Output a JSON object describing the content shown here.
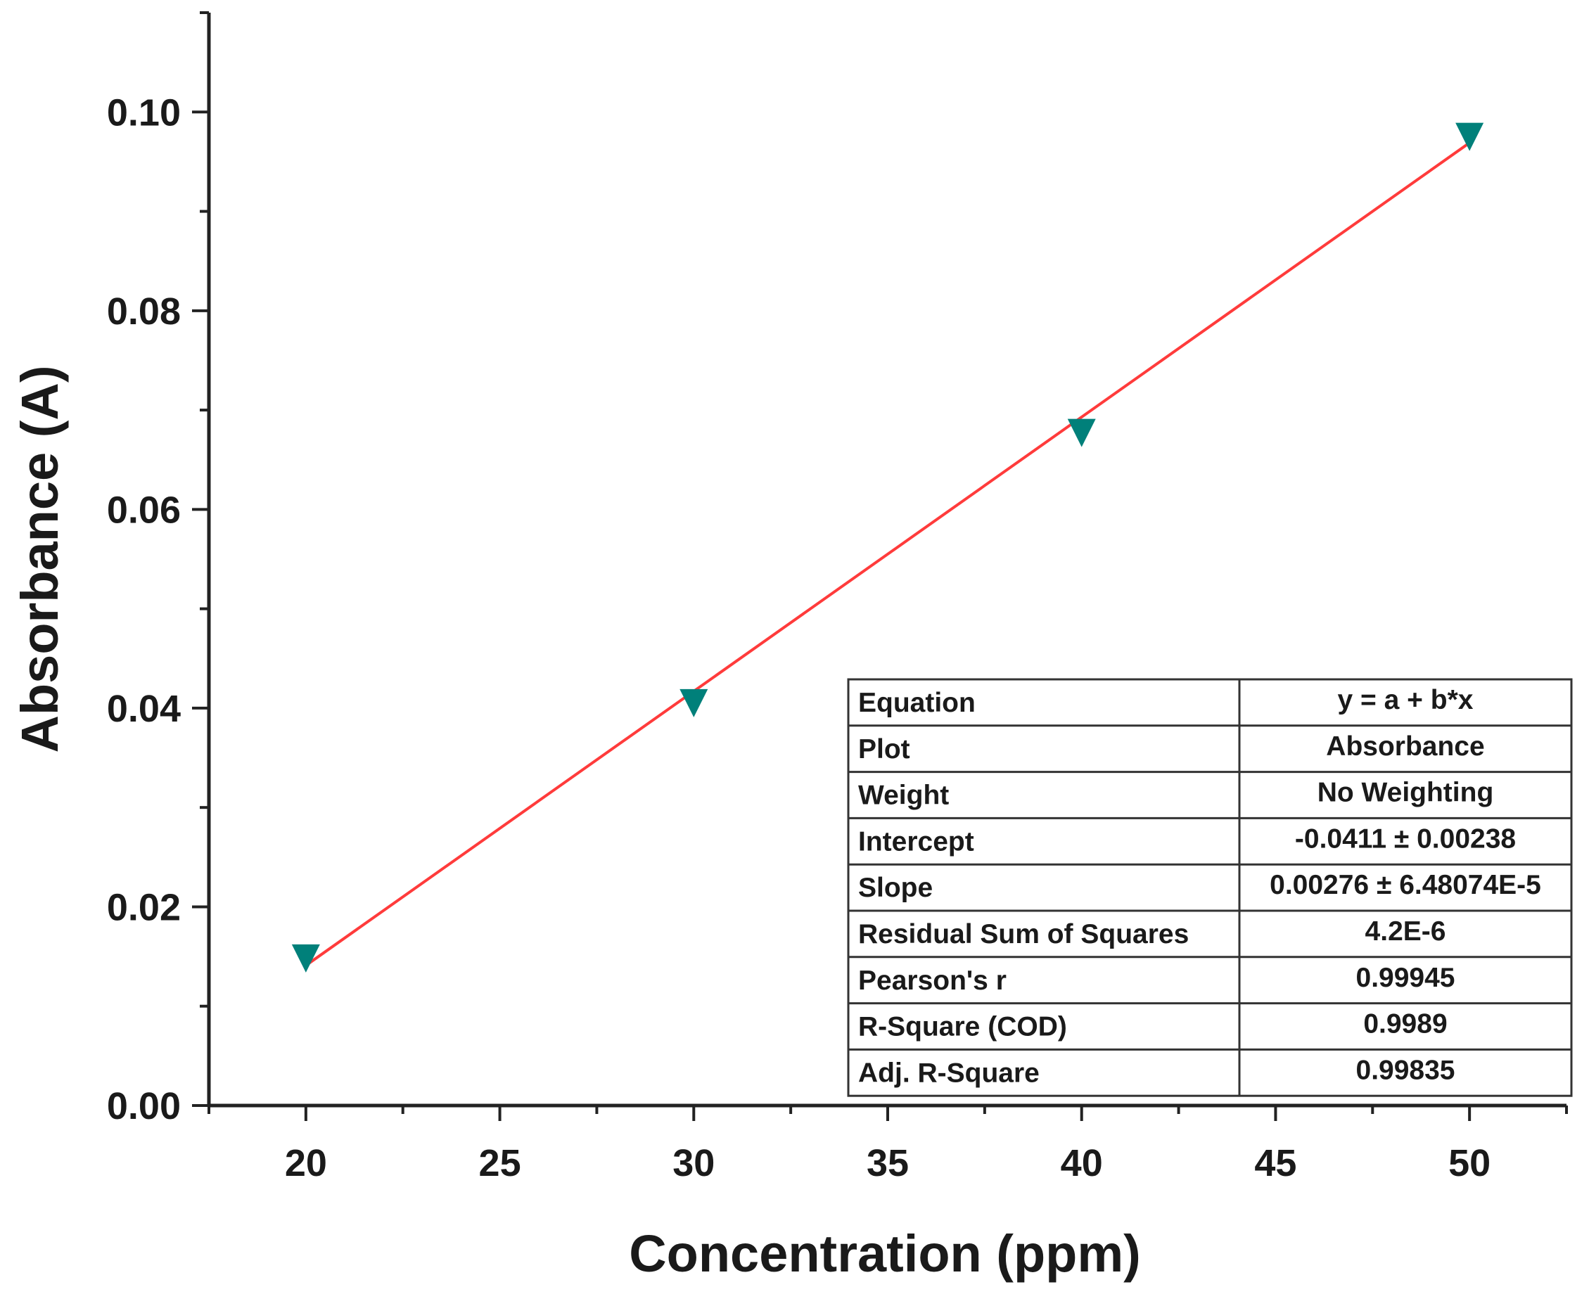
{
  "chart_data": {
    "type": "scatter",
    "title": "",
    "xlabel": "Concentration (ppm)",
    "ylabel": "Absorbance (A)",
    "xlim": [
      17.5,
      52.5
    ],
    "ylim": [
      0,
      0.11
    ],
    "x_major_ticks": [
      20,
      25,
      30,
      35,
      40,
      45,
      50
    ],
    "y_major_ticks": [
      0.0,
      0.02,
      0.04,
      0.06,
      0.08,
      0.1
    ],
    "y_tick_labels": [
      "0.00",
      "0.02",
      "0.04",
      "0.06",
      "0.08",
      "0.10"
    ],
    "grid": false,
    "series": [
      {
        "name": "Absorbance",
        "marker": "down-triangle",
        "color": "#00807a",
        "x": [
          20,
          30,
          40,
          50
        ],
        "y": [
          0.0148,
          0.0405,
          0.0677,
          0.0975
        ]
      }
    ],
    "fit_line": {
      "color": "#ff3b3b",
      "intercept": -0.0411,
      "slope": 0.00276,
      "x_range": [
        20,
        50
      ]
    },
    "stats_table": {
      "rows": [
        [
          "Equation",
          "y = a + b*x"
        ],
        [
          "Plot",
          "Absorbance"
        ],
        [
          "Weight",
          "No Weighting"
        ],
        [
          "Intercept",
          "-0.0411 ± 0.00238"
        ],
        [
          "Slope",
          "0.00276 ± 6.48074E-5"
        ],
        [
          "Residual Sum of Squares",
          "4.2E-6"
        ],
        [
          "Pearson's r",
          "0.99945"
        ],
        [
          "R-Square (COD)",
          "0.9989"
        ],
        [
          "Adj. R-Square",
          "0.99835"
        ]
      ]
    }
  }
}
